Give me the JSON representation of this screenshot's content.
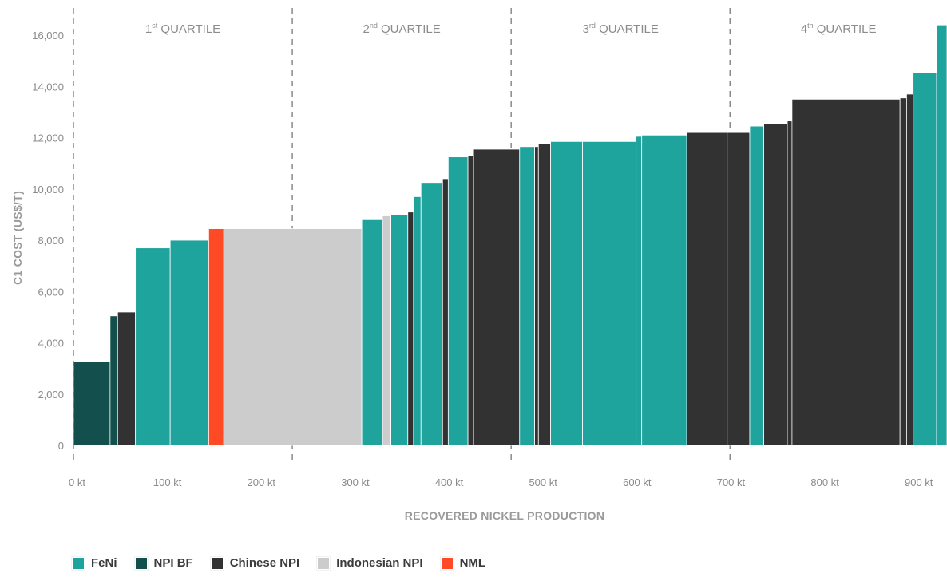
{
  "chart_data": {
    "type": "bar",
    "subtype": "cost-curve",
    "xlabel": "RECOVERED NICKEL PRODUCTION",
    "ylabel": "C1 COST (US$/T)",
    "xlim": [
      0,
      930
    ],
    "ylim": [
      0,
      16500
    ],
    "x_ticks": [
      {
        "value": 0,
        "label": "0 kt"
      },
      {
        "value": 100,
        "label": "100 kt"
      },
      {
        "value": 200,
        "label": "200 kt"
      },
      {
        "value": 300,
        "label": "300 kt"
      },
      {
        "value": 400,
        "label": "400 kt"
      },
      {
        "value": 500,
        "label": "500 kt"
      },
      {
        "value": 600,
        "label": "600 kt"
      },
      {
        "value": 700,
        "label": "700 kt"
      },
      {
        "value": 800,
        "label": "800 kt"
      },
      {
        "value": 900,
        "label": "900 kt"
      }
    ],
    "y_ticks": [
      {
        "value": 0,
        "label": "0"
      },
      {
        "value": 2000,
        "label": "2,000"
      },
      {
        "value": 4000,
        "label": "4,000"
      },
      {
        "value": 6000,
        "label": "6,000"
      },
      {
        "value": 8000,
        "label": "8,000"
      },
      {
        "value": 10000,
        "label": "10,000"
      },
      {
        "value": 12000,
        "label": "12,000"
      },
      {
        "value": 14000,
        "label": "14,000"
      },
      {
        "value": 16000,
        "label": "16,000"
      }
    ],
    "grid": false,
    "legend_position": "bottom-left",
    "quartiles": [
      {
        "ord": "1",
        "sup": "st",
        "label": "QUARTILE",
        "start": 0,
        "end": 233
      },
      {
        "ord": "2",
        "sup": "nd",
        "label": "QUARTILE",
        "start": 233,
        "end": 466
      },
      {
        "ord": "3",
        "sup": "rd",
        "label": "QUARTILE",
        "start": 466,
        "end": 699
      },
      {
        "ord": "4",
        "sup": "th",
        "label": "QUARTILE",
        "start": 699,
        "end": 930
      }
    ],
    "categories": [
      {
        "key": "feni",
        "name": "FeNi",
        "color": "#1fa39d"
      },
      {
        "key": "npibf",
        "name": "NPI BF",
        "color": "#124f4d"
      },
      {
        "key": "cnpi",
        "name": "Chinese NPI",
        "color": "#323232"
      },
      {
        "key": "inpi",
        "name": "Indonesian NPI",
        "color": "#cccccc"
      },
      {
        "key": "nml",
        "name": "NML",
        "color": "#ff4a26"
      }
    ],
    "bars": [
      {
        "start": 0,
        "width": 39,
        "value": 3250,
        "category": "npibf"
      },
      {
        "start": 39,
        "width": 8,
        "value": 5050,
        "category": "npibf"
      },
      {
        "start": 47,
        "width": 19,
        "value": 5200,
        "category": "cnpi"
      },
      {
        "start": 66,
        "width": 37,
        "value": 7700,
        "category": "feni"
      },
      {
        "start": 103,
        "width": 41,
        "value": 8000,
        "category": "feni"
      },
      {
        "start": 144,
        "width": 16,
        "value": 8450,
        "category": "nml"
      },
      {
        "start": 160,
        "width": 147,
        "value": 8450,
        "category": "inpi"
      },
      {
        "start": 307,
        "width": 22,
        "value": 8800,
        "category": "feni"
      },
      {
        "start": 329,
        "width": 9,
        "value": 8950,
        "category": "inpi"
      },
      {
        "start": 338,
        "width": 18,
        "value": 9000,
        "category": "feni"
      },
      {
        "start": 356,
        "width": 6,
        "value": 9100,
        "category": "cnpi"
      },
      {
        "start": 362,
        "width": 8,
        "value": 9700,
        "category": "feni"
      },
      {
        "start": 370,
        "width": 23,
        "value": 10250,
        "category": "feni"
      },
      {
        "start": 393,
        "width": 6,
        "value": 10400,
        "category": "cnpi"
      },
      {
        "start": 399,
        "width": 21,
        "value": 11250,
        "category": "feni"
      },
      {
        "start": 420,
        "width": 6,
        "value": 11300,
        "category": "cnpi"
      },
      {
        "start": 426,
        "width": 49,
        "value": 11550,
        "category": "cnpi"
      },
      {
        "start": 475,
        "width": 16,
        "value": 11650,
        "category": "feni"
      },
      {
        "start": 491,
        "width": 4,
        "value": 11650,
        "category": "cnpi"
      },
      {
        "start": 495,
        "width": 13,
        "value": 11750,
        "category": "cnpi"
      },
      {
        "start": 508,
        "width": 34,
        "value": 11850,
        "category": "feni"
      },
      {
        "start": 542,
        "width": 57,
        "value": 11850,
        "category": "feni"
      },
      {
        "start": 599,
        "width": 6,
        "value": 12050,
        "category": "feni"
      },
      {
        "start": 605,
        "width": 48,
        "value": 12100,
        "category": "feni"
      },
      {
        "start": 653,
        "width": 43,
        "value": 12200,
        "category": "cnpi"
      },
      {
        "start": 696,
        "width": 24,
        "value": 12200,
        "category": "cnpi"
      },
      {
        "start": 720,
        "width": 15,
        "value": 12450,
        "category": "feni"
      },
      {
        "start": 735,
        "width": 25,
        "value": 12550,
        "category": "cnpi"
      },
      {
        "start": 760,
        "width": 5,
        "value": 12650,
        "category": "cnpi"
      },
      {
        "start": 765,
        "width": 115,
        "value": 13500,
        "category": "cnpi"
      },
      {
        "start": 880,
        "width": 7,
        "value": 13550,
        "category": "cnpi"
      },
      {
        "start": 887,
        "width": 7,
        "value": 13700,
        "category": "cnpi"
      },
      {
        "start": 894,
        "width": 25,
        "value": 14550,
        "category": "feni"
      },
      {
        "start": 919,
        "width": 11,
        "value": 16400,
        "category": "feni"
      }
    ]
  }
}
